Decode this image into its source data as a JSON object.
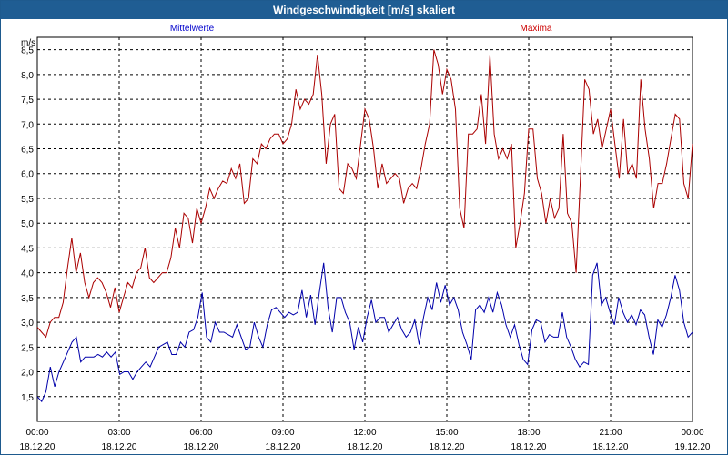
{
  "window": {
    "title": "Windgeschwindigkeit [m/s] skaliert"
  },
  "chart_data": {
    "type": "line",
    "title": "Windgeschwindigkeit [m/s] skaliert",
    "ylabel": "m/s",
    "xlabel": "",
    "ylim": [
      1.0,
      8.75
    ],
    "xlim": [
      0,
      24
    ],
    "grid": true,
    "colors": {
      "Mittelwerte": "#0000aa",
      "Maxima": "#aa0000",
      "grid": "#000000",
      "titlebar": "#1f5d93"
    },
    "y_ticks": [
      1.5,
      2.0,
      2.5,
      3.0,
      3.5,
      4.0,
      4.5,
      5.0,
      5.5,
      6.0,
      6.5,
      7.0,
      7.5,
      8.0,
      8.5
    ],
    "y_tick_labels": [
      "1,5",
      "2,0",
      "2,5",
      "3,0",
      "3,5",
      "4,0",
      "4,5",
      "5,0",
      "5,5",
      "6,0",
      "6,5",
      "7,0",
      "7,5",
      "8,0",
      "8,5"
    ],
    "x_ticks": [
      0,
      3,
      6,
      9,
      12,
      15,
      18,
      21,
      24
    ],
    "x_tick_labels": [
      {
        "time": "00:00",
        "date": "18.12.20"
      },
      {
        "time": "03:00",
        "date": "18.12.20"
      },
      {
        "time": "06:00",
        "date": "18.12.20"
      },
      {
        "time": "09:00",
        "date": "18.12.20"
      },
      {
        "time": "12:00",
        "date": "18.12.20"
      },
      {
        "time": "15:00",
        "date": "18.12.20"
      },
      {
        "time": "18:00",
        "date": "18.12.20"
      },
      {
        "time": "21:00",
        "date": "18.12.20"
      },
      {
        "time": "00:00",
        "date": "19.12.20"
      }
    ],
    "legend": [
      "Mittelwerte",
      "Maxima"
    ],
    "x_step_hours": 0.1667,
    "series": [
      {
        "name": "Mittelwerte",
        "values": [
          1.5,
          1.4,
          1.6,
          2.1,
          1.7,
          2.0,
          2.2,
          2.4,
          2.6,
          2.7,
          2.2,
          2.3,
          2.3,
          2.3,
          2.35,
          2.3,
          2.4,
          2.3,
          2.4,
          1.95,
          2.0,
          2.0,
          1.85,
          2.0,
          2.1,
          2.2,
          2.1,
          2.3,
          2.5,
          2.55,
          2.6,
          2.35,
          2.35,
          2.6,
          2.5,
          2.8,
          2.85,
          3.1,
          3.6,
          2.7,
          2.6,
          3.0,
          2.8,
          2.8,
          2.75,
          2.7,
          2.95,
          2.7,
          2.45,
          2.5,
          3.0,
          2.7,
          2.5,
          2.95,
          3.25,
          3.3,
          3.2,
          3.1,
          3.2,
          3.15,
          3.2,
          3.65,
          3.1,
          3.55,
          2.95,
          3.6,
          4.2,
          3.3,
          2.8,
          3.5,
          3.5,
          3.2,
          3.0,
          2.45,
          2.9,
          2.6,
          3.1,
          3.45,
          3.0,
          3.1,
          3.1,
          2.8,
          2.95,
          3.1,
          2.85,
          2.7,
          2.8,
          3.05,
          2.55,
          3.1,
          3.5,
          3.25,
          3.8,
          3.4,
          3.75,
          3.35,
          3.5,
          3.25,
          2.8,
          2.55,
          2.25,
          3.25,
          3.35,
          3.2,
          3.5,
          3.2,
          3.6,
          3.35,
          2.95,
          2.7,
          2.95,
          2.55,
          2.25,
          2.15,
          2.85,
          3.05,
          3.0,
          2.6,
          2.75,
          2.7,
          2.7,
          3.2,
          2.7,
          2.5,
          2.25,
          2.1,
          2.2,
          2.15,
          3.95,
          4.2,
          3.35,
          3.5,
          3.2,
          2.95,
          3.5,
          3.2,
          3.0,
          3.15,
          2.95,
          3.25,
          3.15,
          2.7,
          2.35,
          3.05,
          2.9,
          3.15,
          3.5,
          3.95,
          3.65,
          3.0,
          2.7,
          2.8
        ]
      },
      {
        "name": "Maxima",
        "values": [
          2.9,
          2.8,
          2.7,
          3.0,
          3.1,
          3.1,
          3.4,
          4.1,
          4.7,
          4.0,
          4.4,
          3.8,
          3.5,
          3.8,
          3.9,
          3.8,
          3.6,
          3.3,
          3.7,
          3.2,
          3.5,
          3.8,
          3.7,
          4.0,
          4.1,
          4.5,
          3.9,
          3.8,
          3.9,
          4.0,
          4.0,
          4.3,
          4.9,
          4.5,
          5.2,
          5.1,
          4.6,
          5.3,
          5.0,
          5.3,
          5.7,
          5.5,
          5.7,
          5.85,
          5.8,
          6.1,
          5.9,
          6.2,
          5.4,
          5.5,
          6.3,
          6.2,
          6.6,
          6.5,
          6.7,
          6.8,
          6.8,
          6.6,
          6.7,
          7.0,
          7.7,
          7.3,
          7.5,
          7.4,
          7.6,
          8.4,
          7.6,
          6.2,
          7.0,
          7.2,
          5.7,
          5.6,
          6.2,
          6.1,
          5.9,
          6.6,
          7.3,
          7.1,
          6.5,
          5.7,
          6.2,
          5.8,
          5.9,
          6.0,
          5.9,
          5.4,
          5.7,
          5.8,
          5.7,
          6.1,
          6.6,
          7.0,
          8.5,
          8.2,
          7.6,
          8.1,
          7.9,
          7.3,
          5.3,
          4.9,
          6.8,
          6.8,
          6.9,
          7.6,
          6.6,
          8.4,
          6.8,
          6.3,
          6.5,
          6.3,
          6.6,
          4.5,
          5.0,
          5.6,
          6.9,
          6.9,
          5.9,
          5.6,
          5.0,
          5.5,
          5.1,
          5.3,
          6.8,
          5.2,
          5.0,
          4.0,
          5.9,
          7.9,
          7.7,
          6.8,
          7.1,
          6.5,
          6.9,
          7.3,
          6.6,
          5.9,
          7.1,
          6.0,
          6.2,
          5.9,
          7.9,
          6.9,
          6.3,
          5.3,
          5.8,
          5.8,
          6.2,
          6.7,
          7.2,
          7.1,
          5.8,
          5.5,
          6.6
        ]
      }
    ]
  }
}
